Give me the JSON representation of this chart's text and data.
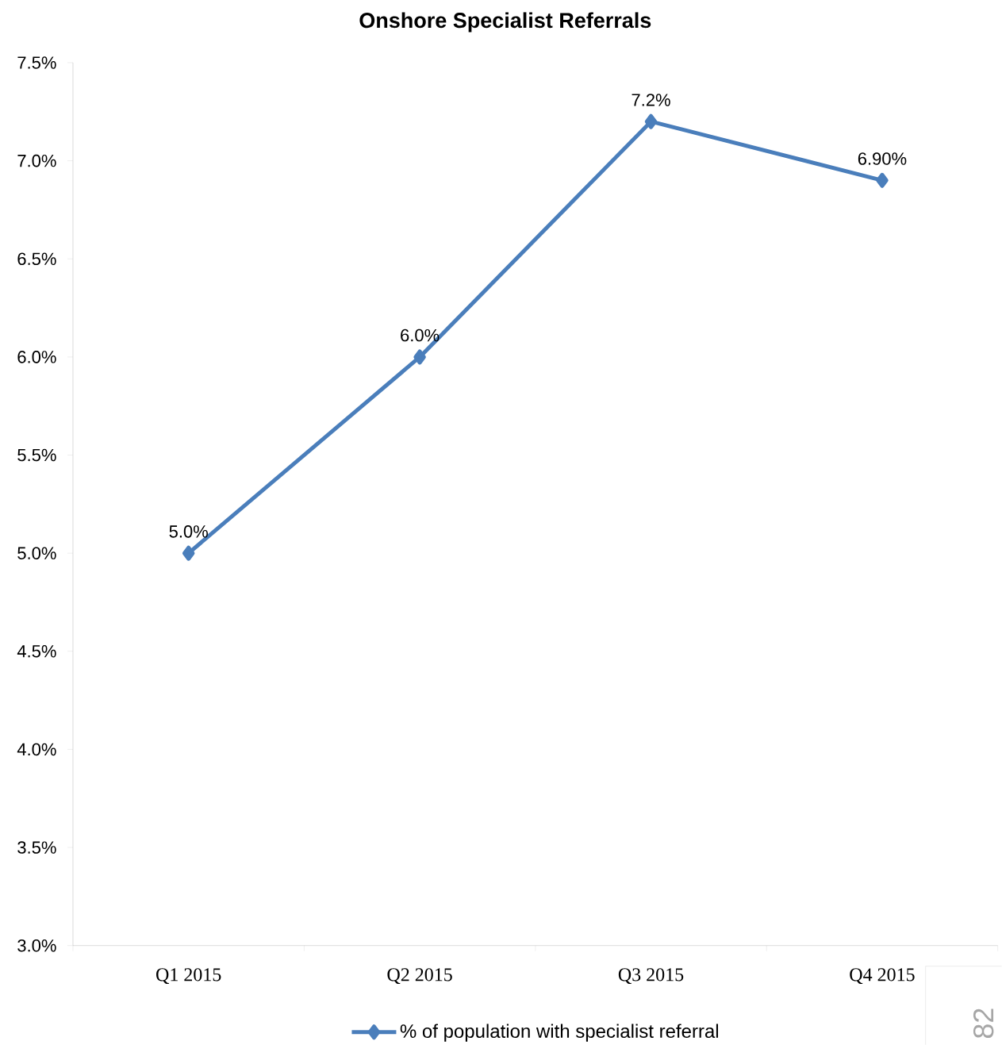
{
  "chart_data": {
    "type": "line",
    "title": "Onshore Specialist Referrals",
    "categories": [
      "Q1 2015",
      "Q2 2015",
      "Q3 2015",
      "Q4 2015"
    ],
    "series": [
      {
        "name": "% of population with specialist referral",
        "color": "#4a7ebb",
        "values": [
          5.0,
          6.0,
          7.2,
          6.9
        ],
        "value_labels": [
          "5.0%",
          "6.0%",
          "7.2%",
          "6.90%"
        ]
      }
    ],
    "ylim": [
      3.0,
      7.5
    ],
    "yticks": [
      {
        "value": 3.0,
        "label": "3.0%"
      },
      {
        "value": 3.5,
        "label": "3.5%"
      },
      {
        "value": 4.0,
        "label": "4.0%"
      },
      {
        "value": 4.5,
        "label": "4.5%"
      },
      {
        "value": 5.0,
        "label": "5.0%"
      },
      {
        "value": 5.5,
        "label": "5.5%"
      },
      {
        "value": 6.0,
        "label": "6.0%"
      },
      {
        "value": 6.5,
        "label": "6.5%"
      },
      {
        "value": 7.0,
        "label": "7.0%"
      },
      {
        "value": 7.5,
        "label": "7.5%"
      }
    ],
    "marker": "diamond",
    "line_style": "solid",
    "grid": false,
    "legend": "bottom",
    "annotations": [
      "82"
    ]
  }
}
